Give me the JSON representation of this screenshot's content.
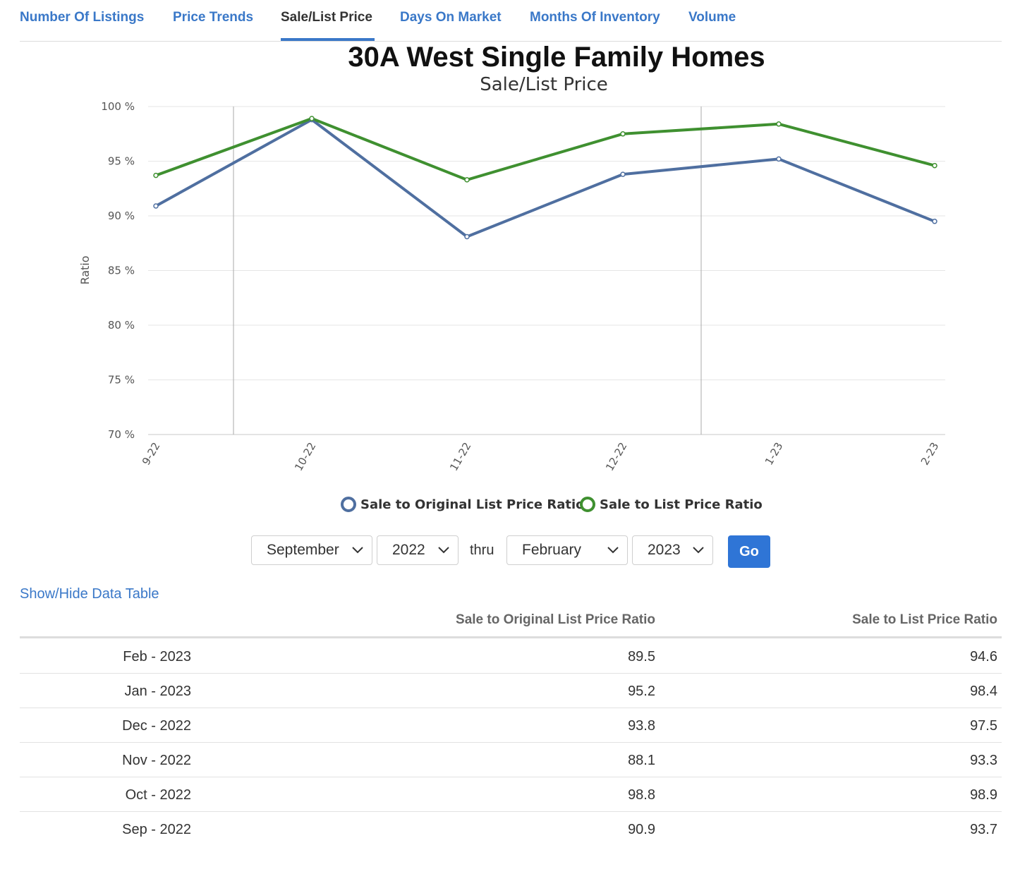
{
  "tabs": [
    {
      "label": "Number Of Listings"
    },
    {
      "label": "Price Trends"
    },
    {
      "label": "Sale/List Price"
    },
    {
      "label": "Days On Market"
    },
    {
      "label": "Months Of Inventory"
    },
    {
      "label": "Volume"
    }
  ],
  "active_tab": "Sale/List Price",
  "chart_data": {
    "type": "line",
    "title": "30A West Single Family Homes",
    "subtitle": "Sale/List Price",
    "ylabel": "Ratio",
    "xlabel": "",
    "ylim": [
      70,
      100
    ],
    "yticks": [
      "70 %",
      "75 %",
      "80 %",
      "85 %",
      "90 %",
      "95 %",
      "100 %"
    ],
    "categories": [
      "9-22",
      "10-22",
      "11-22",
      "12-22",
      "1-23",
      "2-23"
    ],
    "series": [
      {
        "name": "Sale to Original List Price Ratio",
        "color": "#4f6fa0",
        "values": [
          90.9,
          98.8,
          88.1,
          93.8,
          95.2,
          89.5
        ]
      },
      {
        "name": "Sale to List Price Ratio",
        "color": "#3f9030",
        "values": [
          93.7,
          98.9,
          93.3,
          97.5,
          98.4,
          94.6
        ]
      }
    ],
    "grid": true,
    "legend": "bottom"
  },
  "controls": {
    "from_month": "September",
    "from_year": "2022",
    "thru_label": "thru",
    "to_month": "February",
    "to_year": "2023",
    "go_label": "Go"
  },
  "table": {
    "toggle_label": "Show/Hide Data Table",
    "headers": [
      "",
      "Sale to Original List Price Ratio",
      "Sale to List Price Ratio"
    ],
    "rows": [
      {
        "period": "Feb - 2023",
        "orig": "89.5",
        "list": "94.6"
      },
      {
        "period": "Jan - 2023",
        "orig": "95.2",
        "list": "98.4"
      },
      {
        "period": "Dec - 2022",
        "orig": "93.8",
        "list": "97.5"
      },
      {
        "period": "Nov - 2022",
        "orig": "88.1",
        "list": "93.3"
      },
      {
        "period": "Oct - 2022",
        "orig": "98.8",
        "list": "98.9"
      },
      {
        "period": "Sep - 2022",
        "orig": "90.9",
        "list": "93.7"
      }
    ]
  }
}
